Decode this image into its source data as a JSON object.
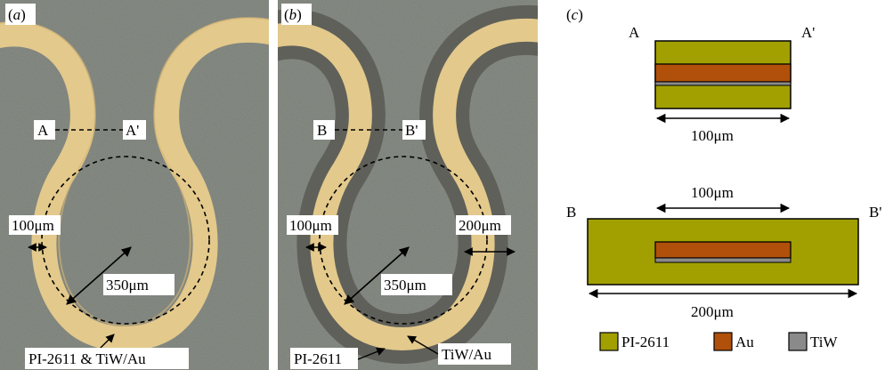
{
  "panel_a": {
    "tag_open": "(",
    "tag_letter": "a",
    "tag_close": ")",
    "section_start": "A",
    "section_end": "A'",
    "width_label": "100μm",
    "radius_label": "350μm",
    "material_label": "PI-2611 & TiW/Au"
  },
  "panel_b": {
    "tag_open": "(",
    "tag_letter": "b",
    "tag_close": ")",
    "section_start": "B",
    "section_end": "B'",
    "inner_width_label": "100μm",
    "outer_width_label": "200μm",
    "radius_label": "350μm",
    "pi_label": "PI-2611",
    "metal_label": "TiW/Au"
  },
  "panel_c": {
    "tag_open": "(",
    "tag_letter": "c",
    "tag_close": ")",
    "cross_a": {
      "start": "A",
      "end": "A'",
      "width_label": "100μm"
    },
    "cross_b": {
      "start": "B",
      "end": "B'",
      "inner_width_label": "100μm",
      "outer_width_label": "200μm"
    },
    "legend": [
      {
        "label": "PI-2611",
        "color": "#a1a000"
      },
      {
        "label": "Au",
        "color": "#b0500a"
      },
      {
        "label": "TiW",
        "color": "#8a8a8a"
      }
    ]
  },
  "colors": {
    "substrate": "#787d76",
    "gold": "#e3c98c",
    "polyimide_rim": "#5f6059",
    "polyimide": "#a1a000",
    "gold_layer": "#b0500a",
    "tiw_layer": "#8a8a8a"
  }
}
